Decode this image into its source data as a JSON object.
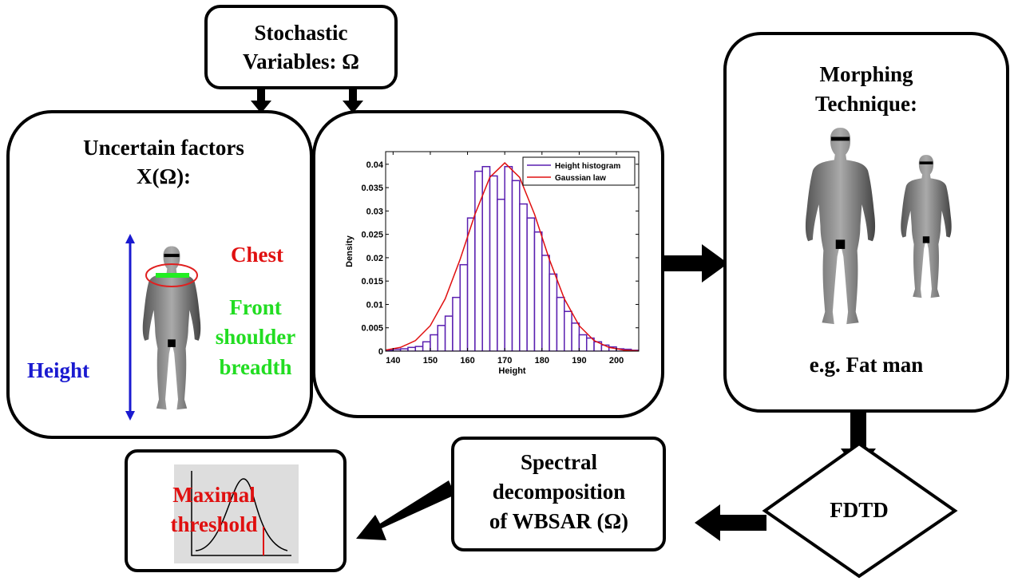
{
  "stochastic": [
    "Stochastic",
    "Variables: Ω"
  ],
  "uncertain": [
    "Uncertain factors",
    "X(Ω):"
  ],
  "chest": "Chest",
  "shoulder": [
    "Front",
    "shoulder",
    "breadth"
  ],
  "height": "Height",
  "morphing": [
    "Morphing",
    "Technique:"
  ],
  "example": "e.g. Fat man",
  "spectral": [
    "Spectral",
    "decomposition",
    "of WBSAR (Ω)"
  ],
  "fdtd": "FDTD",
  "threshold": [
    "Maximal",
    "threshold"
  ],
  "chart_data": {
    "type": "histogram",
    "xlabel": "Height",
    "ylabel": "Density",
    "bins": [
      138,
      140,
      142,
      144,
      146,
      148,
      150,
      152,
      154,
      156,
      158,
      160,
      162,
      164,
      166,
      168,
      170,
      172,
      174,
      176,
      178,
      180,
      182,
      184,
      186,
      188,
      190,
      192,
      194,
      196,
      198,
      200,
      202,
      204,
      206
    ],
    "series": [
      {
        "name": "Height histogram",
        "color": "#5a1fb0",
        "type": "histogram",
        "values": [
          0.0002,
          0.0004,
          0.0005,
          0.0008,
          0.001,
          0.002,
          0.0035,
          0.0055,
          0.0075,
          0.0115,
          0.0185,
          0.0285,
          0.0385,
          0.0395,
          0.0375,
          0.0325,
          0.0395,
          0.0365,
          0.0315,
          0.0285,
          0.0255,
          0.0205,
          0.0165,
          0.0115,
          0.0085,
          0.006,
          0.0035,
          0.0028,
          0.002,
          0.0013,
          0.0009,
          0.0005,
          0.0004,
          0.0002
        ]
      },
      {
        "name": "Gaussian law",
        "color": "#e01010",
        "type": "line",
        "x": [
          138,
          142,
          146,
          150,
          154,
          158,
          162,
          166,
          170,
          174,
          178,
          182,
          186,
          190,
          194,
          198,
          202,
          206
        ],
        "values": [
          0.00024,
          0.0008,
          0.00226,
          0.00545,
          0.0112,
          0.0196,
          0.0293,
          0.0372,
          0.0403,
          0.0372,
          0.0293,
          0.0196,
          0.0112,
          0.00545,
          0.00226,
          0.0008,
          0.00024,
          7e-05
        ]
      }
    ],
    "xlim": [
      138,
      206
    ],
    "ylim": [
      0,
      0.0427
    ],
    "xticks": [
      140,
      150,
      160,
      170,
      180,
      190,
      200
    ],
    "yticks": [
      0,
      0.005,
      0.01,
      0.015,
      0.02,
      0.025,
      0.03,
      0.035,
      0.04
    ]
  }
}
